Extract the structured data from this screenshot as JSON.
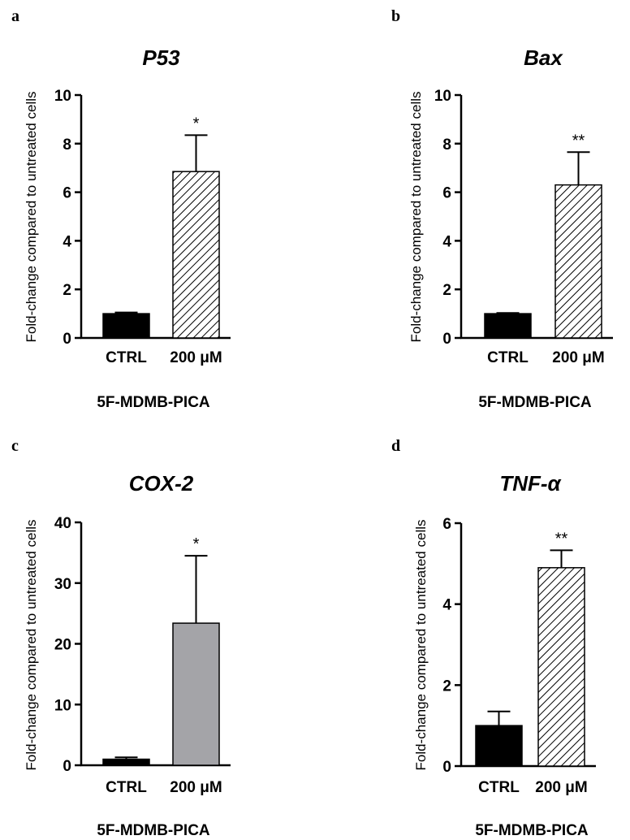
{
  "chart_data": [
    {
      "type": "bar",
      "panel": "a",
      "title": "P53",
      "ylabel": "Fold-change compared to untreated cells",
      "xlabel": "5F-MDMB-PICA",
      "categories": [
        "CTRL",
        "200 μM"
      ],
      "values": [
        1.0,
        6.85
      ],
      "errors": [
        0.05,
        1.5
      ],
      "significance": [
        "",
        "*"
      ],
      "fills": [
        "solid-black",
        "diagonal-hatch"
      ],
      "colors": [
        "#000000",
        "#ffffff"
      ],
      "ylim": [
        0,
        10
      ],
      "yticks": [
        "0",
        "2",
        "4",
        "6",
        "8",
        "10"
      ]
    },
    {
      "type": "bar",
      "panel": "b",
      "title": "Bax",
      "ylabel": "Fold-change compared to untreated cells",
      "xlabel": "5F-MDMB-PICA",
      "categories": [
        "CTRL",
        "200 μM"
      ],
      "values": [
        1.0,
        6.3
      ],
      "errors": [
        0.03,
        1.35
      ],
      "significance": [
        "",
        "**"
      ],
      "fills": [
        "solid-black",
        "diagonal-hatch"
      ],
      "colors": [
        "#000000",
        "#ffffff"
      ],
      "ylim": [
        0,
        10
      ],
      "yticks": [
        "0",
        "2",
        "4",
        "6",
        "8",
        "10"
      ]
    },
    {
      "type": "bar",
      "panel": "c",
      "title": "COX-2",
      "ylabel": "Fold-change compared to untreated cells",
      "xlabel": "5F-MDMB-PICA",
      "categories": [
        "CTRL",
        "200 μM"
      ],
      "values": [
        1.0,
        23.4
      ],
      "errors": [
        0.3,
        11.1
      ],
      "significance": [
        "",
        "*"
      ],
      "fills": [
        "solid-black",
        "solid-gray"
      ],
      "colors": [
        "#000000",
        "#a4a4a8"
      ],
      "ylim": [
        0,
        40
      ],
      "yticks": [
        "0",
        "10",
        "20",
        "30",
        "40"
      ]
    },
    {
      "type": "bar",
      "panel": "d",
      "title": "TNF-α",
      "ylabel": "Fold-change compared to untreated cells",
      "xlabel": "5F-MDMB-PICA",
      "categories": [
        "CTRL",
        "200 μM"
      ],
      "values": [
        1.0,
        4.9
      ],
      "errors": [
        0.35,
        0.43
      ],
      "significance": [
        "",
        "**"
      ],
      "fills": [
        "solid-black",
        "diagonal-hatch"
      ],
      "colors": [
        "#000000",
        "#ffffff"
      ],
      "ylim": [
        0,
        6
      ],
      "yticks": [
        "0",
        "2",
        "4",
        "6"
      ]
    }
  ]
}
